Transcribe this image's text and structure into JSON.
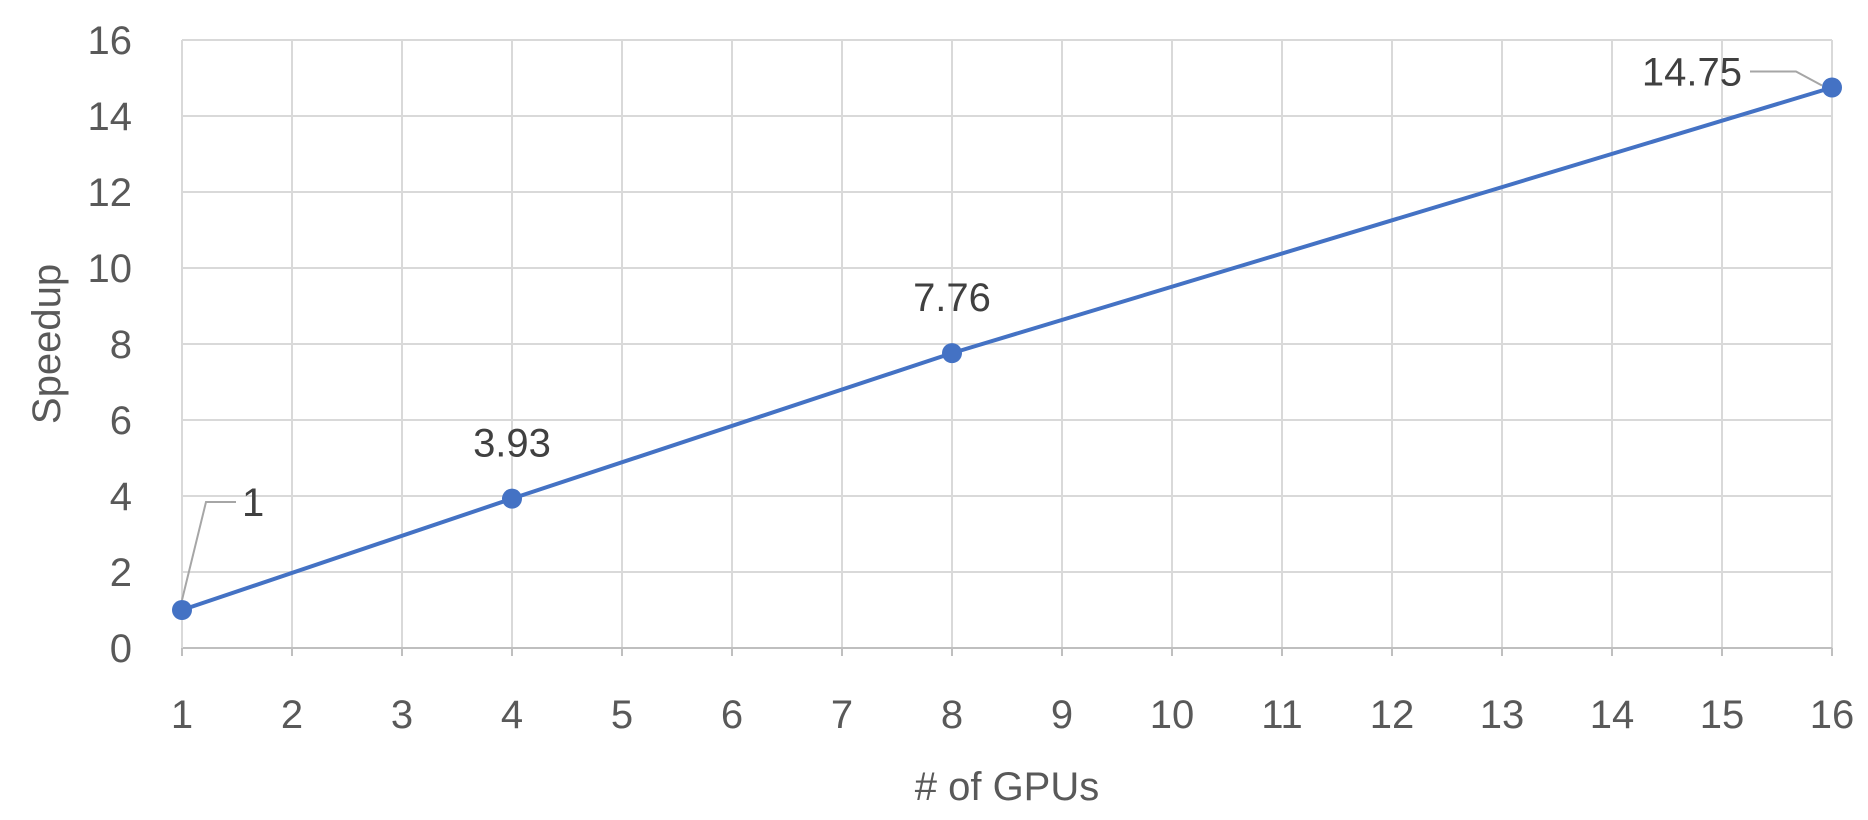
{
  "chart_data": {
    "type": "line",
    "title": "",
    "xlabel": "# of GPUs",
    "ylabel": "Speedup",
    "x_ticks": [
      "1",
      "2",
      "3",
      "4",
      "5",
      "6",
      "7",
      "8",
      "9",
      "10",
      "11",
      "12",
      "13",
      "14",
      "15",
      "16"
    ],
    "y_ticks": [
      "0",
      "2",
      "4",
      "6",
      "8",
      "10",
      "12",
      "14",
      "16"
    ],
    "xlim": [
      1,
      16
    ],
    "ylim": [
      0,
      16
    ],
    "grid": true,
    "legend": "none",
    "series": [
      {
        "color": "#4472c4",
        "x": [
          1,
          4,
          8,
          16
        ],
        "y": [
          1,
          3.93,
          7.76,
          14.75
        ],
        "labels": [
          "1",
          "3.93",
          "7.76",
          "14.75"
        ]
      }
    ]
  }
}
